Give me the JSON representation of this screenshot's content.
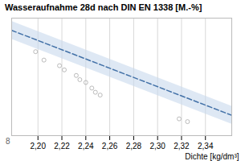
{
  "chart_data": {
    "type": "scatter",
    "title": "Wasseraufnahme 28d nach DIN EN 1338 [M.-%]",
    "xlabel": "Dichte [kg/dm³]",
    "xlim": [
      2.178,
      2.362
    ],
    "ylim": [
      2.4,
      6.6
    ],
    "xticks": [
      {
        "value": 2.2,
        "label": "2,20"
      },
      {
        "value": 2.22,
        "label": "2,22"
      },
      {
        "value": 2.24,
        "label": "2,24"
      },
      {
        "value": 2.26,
        "label": "2,26"
      },
      {
        "value": 2.28,
        "label": "2,28"
      },
      {
        "value": 2.3,
        "label": "2,30"
      },
      {
        "value": 2.32,
        "label": "2,32"
      },
      {
        "value": 2.34,
        "label": "2,34"
      }
    ],
    "grid": true,
    "tick_labels": "x",
    "series": [
      {
        "type": "area",
        "x": [
          2.178,
          2.362
        ],
        "lower": [
          5.843,
          2.807
        ],
        "upper": [
          6.483,
          3.447
        ],
        "color": "#c8d8ec"
      },
      {
        "type": "line",
        "x": [
          2.178,
          2.362
        ],
        "values": [
          6.163,
          3.127
        ],
        "color": "#4472a8",
        "line_style": "dashed"
      },
      {
        "type": "scatter",
        "x": [
          2.198,
          2.205,
          2.218,
          2.222,
          2.232,
          2.235,
          2.24,
          2.245,
          2.248,
          2.252,
          2.318,
          2.325
        ],
        "values": [
          5.4,
          5.1,
          4.9,
          4.75,
          4.55,
          4.4,
          4.3,
          4.1,
          3.95,
          3.85,
          3.0,
          2.9
        ],
        "color": "#aaaaaa",
        "marker": "circle"
      }
    ],
    "annotations": [
      {
        "text": "8",
        "x": 2.178,
        "y": 2.4
      }
    ]
  }
}
